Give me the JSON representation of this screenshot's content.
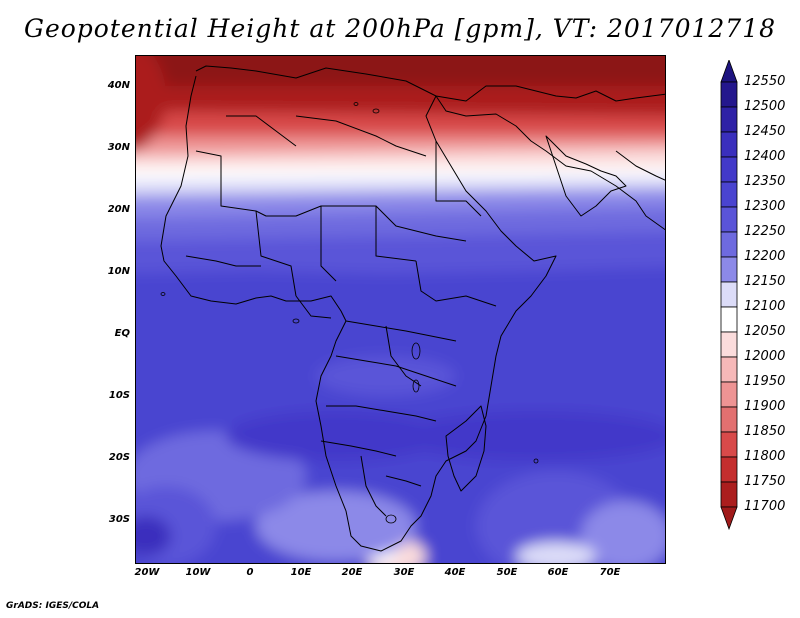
{
  "title": "Geopotential Height at 200hPa [gpm], VT: 2017012718",
  "credit": "GrADS: IGES/COLA",
  "colorbar": {
    "levels": [
      {
        "label": "12550",
        "color": "#24178d"
      },
      {
        "label": "12500",
        "color": "#2e21a6"
      },
      {
        "label": "12450",
        "color": "#3a2fbd"
      },
      {
        "label": "12400",
        "color": "#4239c9"
      },
      {
        "label": "12350",
        "color": "#4a44d0"
      },
      {
        "label": "12300",
        "color": "#5a54d8"
      },
      {
        "label": "12250",
        "color": "#6e6adf"
      },
      {
        "label": "12200",
        "color": "#8c89e8"
      },
      {
        "label": "12150",
        "color": "#dcdcf8"
      },
      {
        "label": "12100",
        "color": "#ffffff"
      },
      {
        "label": "12050",
        "color": "#fbdcdc"
      },
      {
        "label": "12000",
        "color": "#f6b8b8"
      },
      {
        "label": "11950",
        "color": "#ee9494"
      },
      {
        "label": "11900",
        "color": "#e27070"
      },
      {
        "label": "11850",
        "color": "#d84a4a"
      },
      {
        "label": "11800",
        "color": "#c42e2e"
      },
      {
        "label": "11750",
        "color": "#ab1e1e"
      },
      {
        "label": "11700",
        "color": "#8c1414"
      }
    ],
    "top_arrow_color": "#1e1480",
    "bottom_arrow_color": "#a01a1a"
  },
  "axes": {
    "lat_labels": [
      "40N",
      "30N",
      "20N",
      "10N",
      "EQ",
      "10S",
      "20S",
      "30S"
    ],
    "lon_labels": [
      "20W",
      "10W",
      "0",
      "10E",
      "20E",
      "30E",
      "40E",
      "50E",
      "60E",
      "70E"
    ]
  }
}
